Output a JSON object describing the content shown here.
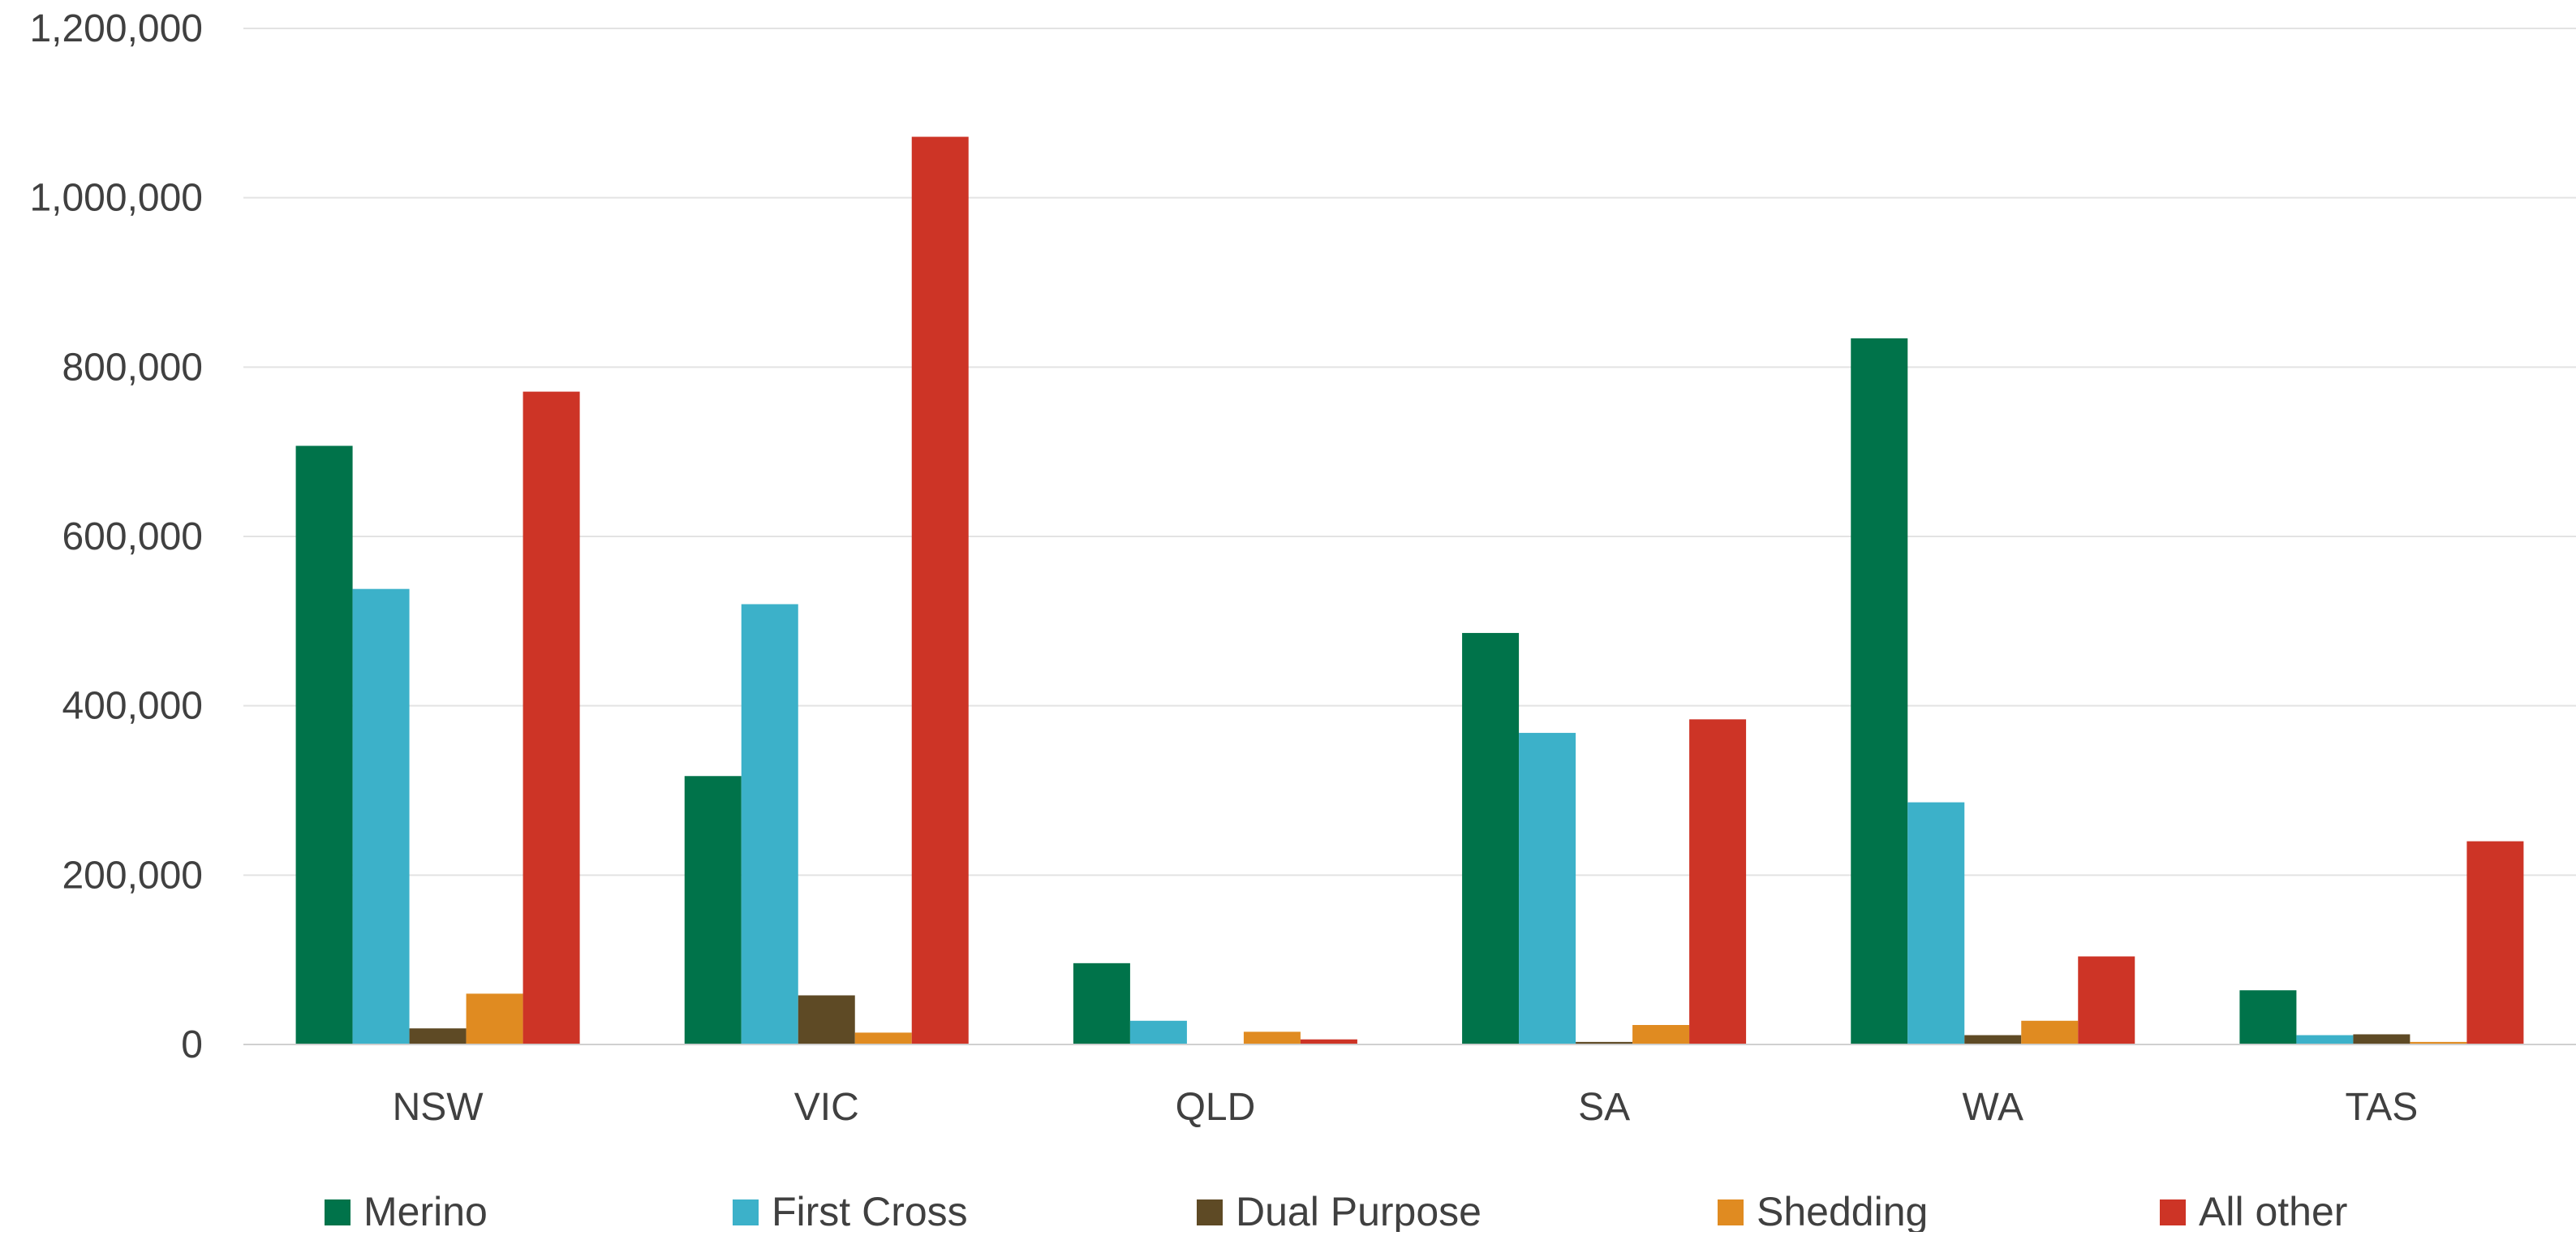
{
  "chart_data": {
    "type": "bar",
    "title": "",
    "xlabel": "",
    "ylabel": "",
    "categories": [
      "NSW",
      "VIC",
      "QLD",
      "SA",
      "WA",
      "TAS"
    ],
    "ylim": [
      0,
      1200000
    ],
    "yticks": [
      0,
      200000,
      400000,
      600000,
      800000,
      1000000,
      1200000
    ],
    "ytick_labels": [
      "0",
      "200,000",
      "400,000",
      "600,000",
      "800,000",
      "1,000,000",
      "1,200,000"
    ],
    "grid": true,
    "legend": "bottom",
    "series": [
      {
        "name": "Merino",
        "color": "#00734a",
        "values": [
          707000,
          317000,
          96000,
          486000,
          834000,
          64000
        ]
      },
      {
        "name": "First Cross",
        "color": "#3cb1c9",
        "values": [
          538000,
          520000,
          28000,
          368000,
          286000,
          11000
        ]
      },
      {
        "name": "Dual Purpose",
        "color": "#5e4a25",
        "values": [
          19000,
          58000,
          0,
          3000,
          11000,
          12000
        ]
      },
      {
        "name": "Shedding",
        "color": "#e08b21",
        "values": [
          60000,
          14000,
          15000,
          23000,
          28000,
          3000
        ]
      },
      {
        "name": "All other",
        "color": "#cd3426",
        "values": [
          771000,
          1072000,
          6000,
          384000,
          104000,
          240000
        ]
      }
    ]
  }
}
